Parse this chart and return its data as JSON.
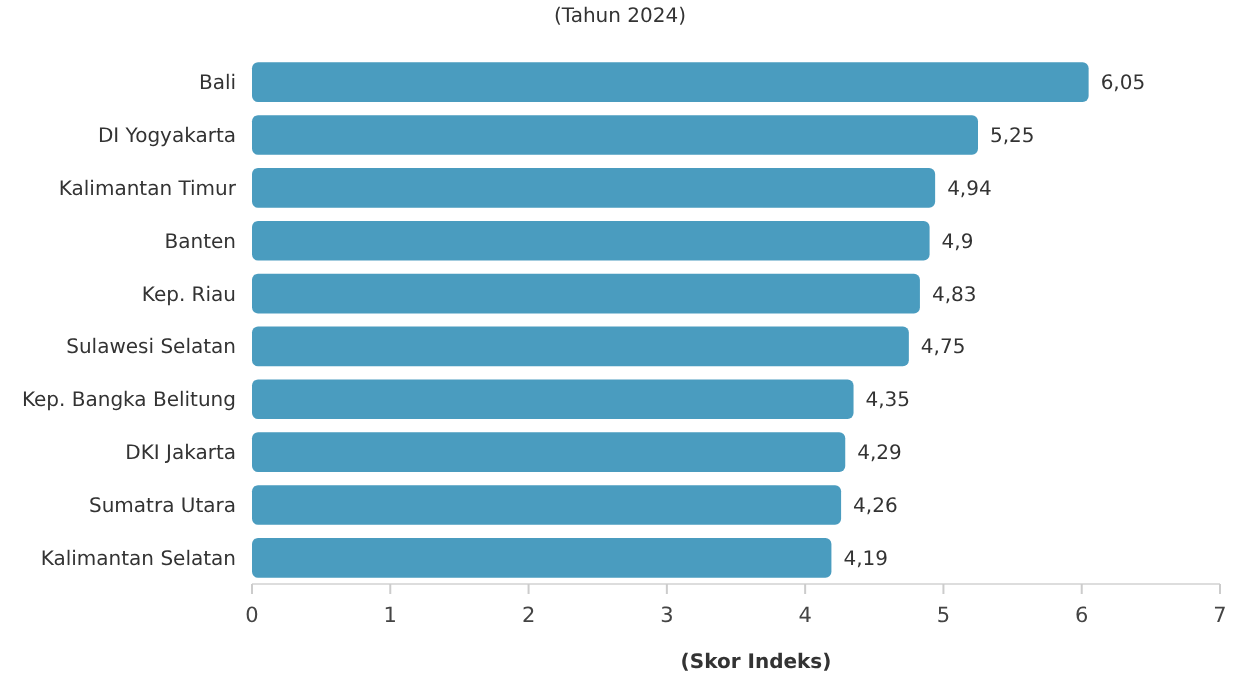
{
  "chart_data": {
    "type": "bar",
    "orientation": "horizontal",
    "subtitle": "(Tahun 2024)",
    "xlabel": "(Skor Indeks)",
    "categories": [
      "Bali",
      "DI Yogyakarta",
      "Kalimantan Timur",
      "Banten",
      "Kep. Riau",
      "Sulawesi Selatan",
      "Kep. Bangka Belitung",
      "DKI Jakarta",
      "Sumatra Utara",
      "Kalimantan Selatan"
    ],
    "values": [
      6.05,
      5.25,
      4.94,
      4.9,
      4.83,
      4.75,
      4.35,
      4.29,
      4.26,
      4.19
    ],
    "value_labels": [
      "6,05",
      "5,25",
      "4,94",
      "4,9",
      "4,83",
      "4,75",
      "4,35",
      "4,29",
      "4,26",
      "4,19"
    ],
    "color": "#4a9cbf",
    "xlim": [
      0,
      7
    ],
    "xticks": [
      0,
      1,
      2,
      3,
      4,
      5,
      6,
      7
    ],
    "grid": false
  }
}
